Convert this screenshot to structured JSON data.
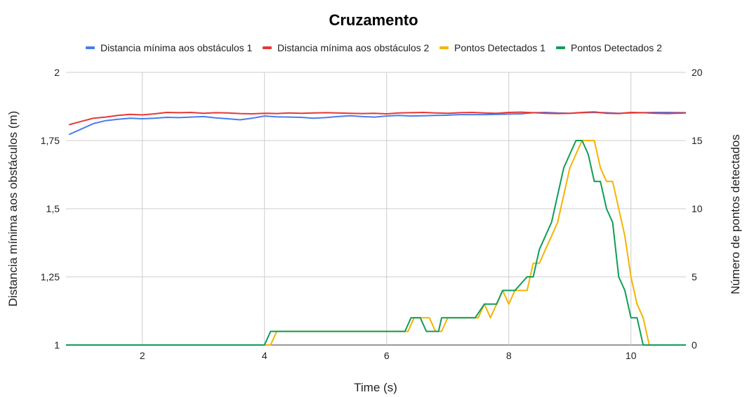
{
  "chart_data": {
    "type": "line",
    "title": "Cruzamento",
    "xlabel": "Time (s)",
    "ylabel_left": "Distancia mínima aos obstáculos (m)",
    "ylabel_right": "Número de pontos detectados",
    "xlim": [
      0.75,
      10.9
    ],
    "ylim_left": [
      1,
      2
    ],
    "ylim_right": [
      0,
      20
    ],
    "x_ticks": [
      "2",
      "4",
      "6",
      "8",
      "10"
    ],
    "x_tick_values": [
      2,
      4,
      6,
      8,
      10
    ],
    "y_left_ticks": [
      "1",
      "1,25",
      "1,5",
      "1,75",
      "2"
    ],
    "y_left_tick_values": [
      1,
      1.25,
      1.5,
      1.75,
      2
    ],
    "y_right_ticks": [
      "0",
      "5",
      "10",
      "15",
      "20"
    ],
    "y_right_tick_values": [
      0,
      5,
      10,
      15,
      20
    ],
    "grid": true,
    "legend_position": "top",
    "series": [
      {
        "name": "Distancia mínima aos obstáculos 1",
        "axis": "left",
        "color": "#4a7cf0",
        "x": [
          0.8,
          1.0,
          1.2,
          1.4,
          1.6,
          1.8,
          2.0,
          2.2,
          2.4,
          2.6,
          2.8,
          3.0,
          3.2,
          3.4,
          3.6,
          3.8,
          4.0,
          4.2,
          4.4,
          4.6,
          4.8,
          5.0,
          5.2,
          5.4,
          5.6,
          5.8,
          6.0,
          6.2,
          6.4,
          6.6,
          6.8,
          7.0,
          7.2,
          7.4,
          7.6,
          7.8,
          8.0,
          8.2,
          8.4,
          8.6,
          8.8,
          9.0,
          9.2,
          9.4,
          9.6,
          9.8,
          10.0,
          10.2,
          10.4,
          10.6,
          10.9
        ],
        "values": [
          1.772,
          1.792,
          1.812,
          1.823,
          1.828,
          1.832,
          1.83,
          1.832,
          1.835,
          1.834,
          1.836,
          1.838,
          1.833,
          1.83,
          1.826,
          1.832,
          1.84,
          1.837,
          1.836,
          1.835,
          1.832,
          1.834,
          1.838,
          1.841,
          1.838,
          1.836,
          1.84,
          1.842,
          1.84,
          1.841,
          1.842,
          1.843,
          1.845,
          1.845,
          1.845,
          1.846,
          1.847,
          1.848,
          1.852,
          1.853,
          1.851,
          1.85,
          1.852,
          1.853,
          1.852,
          1.85,
          1.851,
          1.852,
          1.853,
          1.853,
          1.852
        ]
      },
      {
        "name": "Distancia mínima aos obstáculos 2",
        "axis": "left",
        "color": "#e53935",
        "x": [
          0.8,
          1.0,
          1.2,
          1.4,
          1.6,
          1.8,
          2.0,
          2.2,
          2.4,
          2.6,
          2.8,
          3.0,
          3.2,
          3.4,
          3.6,
          3.8,
          4.0,
          4.2,
          4.4,
          4.6,
          4.8,
          5.0,
          5.2,
          5.4,
          5.6,
          5.8,
          6.0,
          6.2,
          6.4,
          6.6,
          6.8,
          7.0,
          7.2,
          7.4,
          7.6,
          7.8,
          8.0,
          8.2,
          8.4,
          8.6,
          8.8,
          9.0,
          9.2,
          9.4,
          9.6,
          9.8,
          10.0,
          10.2,
          10.4,
          10.6,
          10.9
        ],
        "values": [
          1.808,
          1.82,
          1.832,
          1.836,
          1.842,
          1.846,
          1.844,
          1.848,
          1.853,
          1.852,
          1.853,
          1.85,
          1.852,
          1.851,
          1.849,
          1.848,
          1.85,
          1.849,
          1.851,
          1.85,
          1.851,
          1.852,
          1.851,
          1.85,
          1.849,
          1.85,
          1.848,
          1.851,
          1.852,
          1.853,
          1.851,
          1.85,
          1.852,
          1.853,
          1.851,
          1.85,
          1.853,
          1.854,
          1.852,
          1.85,
          1.849,
          1.85,
          1.853,
          1.855,
          1.85,
          1.849,
          1.853,
          1.852,
          1.85,
          1.849,
          1.851
        ]
      },
      {
        "name": "Pontos Detectados 1",
        "axis": "right",
        "color": "#f4b400",
        "x": [
          0.75,
          4.1,
          4.2,
          6.35,
          6.45,
          6.7,
          6.8,
          6.9,
          7.0,
          7.5,
          7.6,
          7.7,
          7.8,
          7.9,
          8.0,
          8.1,
          8.3,
          8.4,
          8.5,
          8.6,
          8.8,
          9.0,
          9.2,
          9.4,
          9.5,
          9.6,
          9.7,
          9.8,
          9.9,
          10.0,
          10.1,
          10.2,
          10.3,
          10.9
        ],
        "values": [
          0,
          0,
          1,
          1,
          2,
          2,
          1,
          1,
          2,
          2,
          3,
          2,
          3,
          4,
          3,
          4,
          4,
          6,
          6,
          7,
          9,
          13,
          15,
          15,
          13,
          12,
          12,
          10,
          8,
          5,
          3,
          2,
          0,
          0
        ]
      },
      {
        "name": "Pontos Detectados 2",
        "axis": "right",
        "color": "#0f9d58",
        "x": [
          0.75,
          4.0,
          4.1,
          6.3,
          6.4,
          6.55,
          6.65,
          6.85,
          6.9,
          7.45,
          7.6,
          7.8,
          7.9,
          8.0,
          8.1,
          8.3,
          8.4,
          8.5,
          8.6,
          8.7,
          8.8,
          8.9,
          9.0,
          9.1,
          9.2,
          9.3,
          9.4,
          9.5,
          9.6,
          9.7,
          9.8,
          9.9,
          10.0,
          10.1,
          10.2,
          10.9
        ],
        "values": [
          0,
          0,
          1,
          1,
          2,
          2,
          1,
          1,
          2,
          2,
          3,
          3,
          4,
          4,
          4,
          5,
          5,
          7,
          8,
          9,
          11,
          13,
          14,
          15,
          15,
          14,
          12,
          12,
          10,
          9,
          5,
          4,
          2,
          2,
          0,
          0
        ]
      }
    ]
  }
}
